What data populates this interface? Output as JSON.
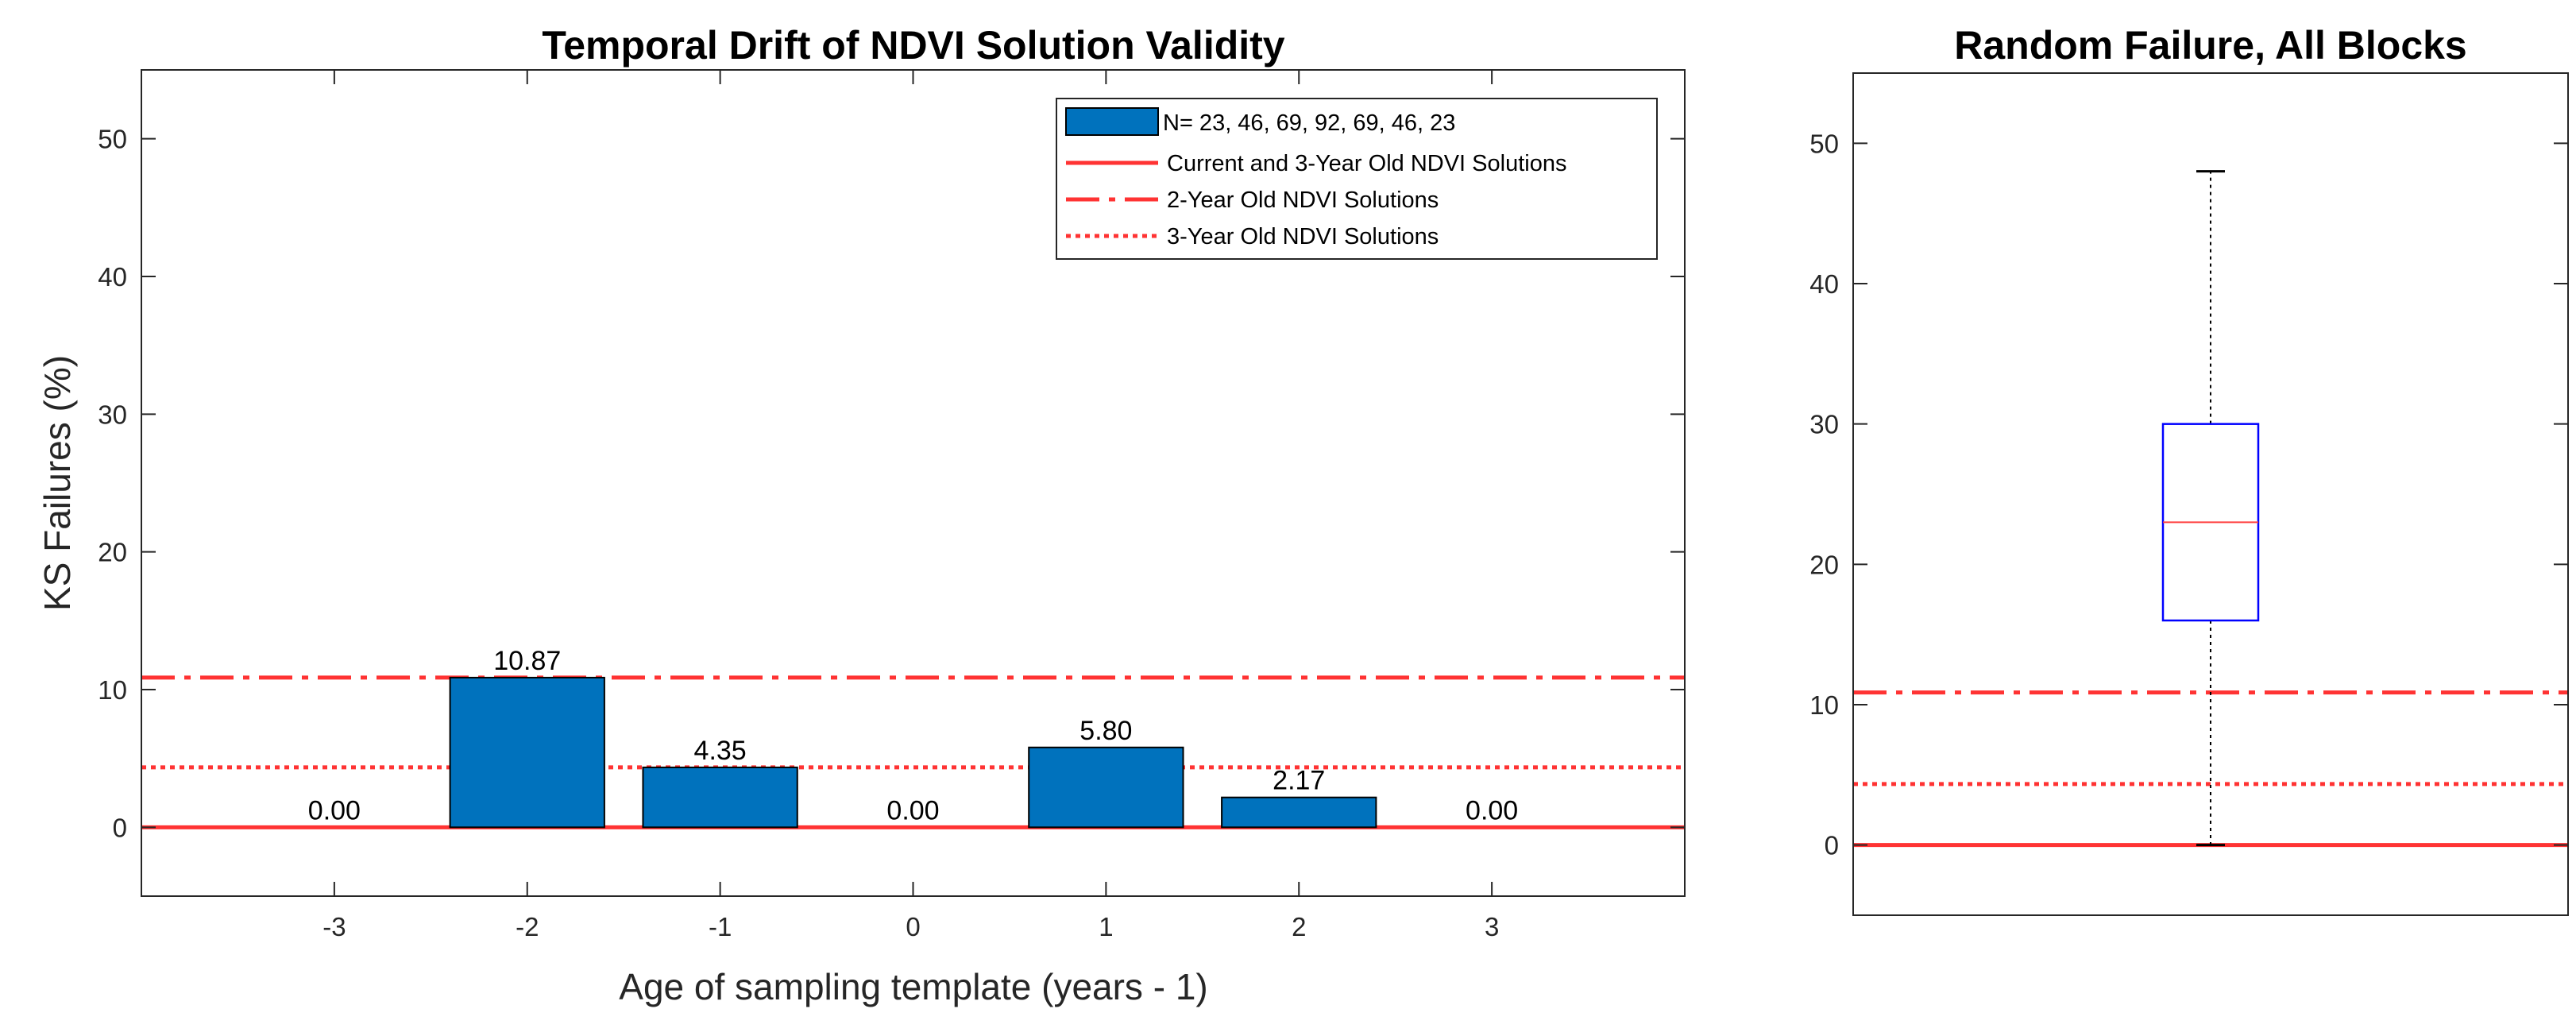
{
  "colors": {
    "bar": "#0072BD",
    "reference_line": "#FF3333",
    "box": "#0000FF",
    "median": "#FF4040",
    "axis": "#262626",
    "whisker": "#000000"
  },
  "chart_data": [
    {
      "type": "bar",
      "title": "Temporal Drift of NDVI Solution Validity",
      "xlabel": "Age of sampling template (years - 1)",
      "ylabel": "KS Failures (%)",
      "categories": [
        "-3",
        "-2",
        "-1",
        "0",
        "1",
        "2",
        "3"
      ],
      "x": [
        -3,
        -2,
        -1,
        0,
        1,
        2,
        3
      ],
      "values": [
        0,
        10.87,
        4.35,
        0,
        5.8,
        2.17,
        0
      ],
      "value_labels": [
        "0.00",
        "10.87",
        "4.35",
        "0.00",
        "5.80",
        "2.17",
        "0.00"
      ],
      "xlim": [
        -4,
        4
      ],
      "ylim": [
        -5,
        55
      ],
      "yticks": [
        0,
        10,
        20,
        30,
        40,
        50
      ],
      "ytick_labels": [
        "0",
        "10",
        "20",
        "30",
        "40",
        "50"
      ],
      "grid": false,
      "legend_position": "top-right",
      "bar_series": {
        "name": "N= 23, 46, 69, 92, 69, 46, 23"
      },
      "reference_lines": [
        {
          "name": "Current and 3-Year Old NDVI Solutions",
          "y": 0,
          "style": "solid"
        },
        {
          "name": "2-Year Old NDVI Solutions",
          "y": 10.87,
          "style": "dashdot"
        },
        {
          "name": "3-Year Old NDVI Solutions",
          "y": 4.35,
          "style": "dotted"
        }
      ]
    },
    {
      "type": "box",
      "title": "Random Failure, All Blocks",
      "ylim": [
        -5,
        55
      ],
      "yticks": [
        0,
        10,
        20,
        30,
        40,
        50
      ],
      "ytick_labels": [
        "0",
        "10",
        "20",
        "30",
        "40",
        "50"
      ],
      "grid": false,
      "box": {
        "min": 0,
        "q1": 16,
        "median": 23,
        "q3": 30,
        "max": 48
      },
      "reference_lines": [
        {
          "y": 0,
          "style": "solid"
        },
        {
          "y": 10.87,
          "style": "dashdot"
        },
        {
          "y": 4.35,
          "style": "dotted"
        }
      ]
    }
  ]
}
